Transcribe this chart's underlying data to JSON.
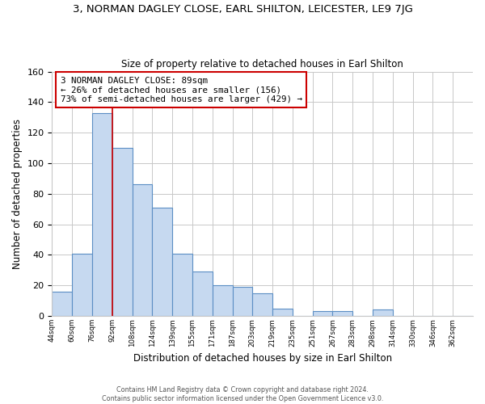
{
  "title": "3, NORMAN DAGLEY CLOSE, EARL SHILTON, LEICESTER, LE9 7JG",
  "subtitle": "Size of property relative to detached houses in Earl Shilton",
  "xlabel": "Distribution of detached houses by size in Earl Shilton",
  "ylabel": "Number of detached properties",
  "bin_labels": [
    "44sqm",
    "60sqm",
    "76sqm",
    "92sqm",
    "108sqm",
    "124sqm",
    "139sqm",
    "155sqm",
    "171sqm",
    "187sqm",
    "203sqm",
    "219sqm",
    "235sqm",
    "251sqm",
    "267sqm",
    "283sqm",
    "298sqm",
    "314sqm",
    "330sqm",
    "346sqm",
    "362sqm"
  ],
  "bar_heights": [
    16,
    41,
    133,
    110,
    86,
    71,
    41,
    29,
    20,
    19,
    15,
    5,
    0,
    3,
    3,
    0,
    4,
    0,
    0,
    0,
    0
  ],
  "bar_color": "#c6d9f0",
  "bar_edge_color": "#5b8ec4",
  "property_line_color": "#cc0000",
  "annotation_text": "3 NORMAN DAGLEY CLOSE: 89sqm\n← 26% of detached houses are smaller (156)\n73% of semi-detached houses are larger (429) →",
  "annotation_box_color": "#ffffff",
  "annotation_box_edge_color": "#cc0000",
  "ylim": [
    0,
    160
  ],
  "yticks": [
    0,
    20,
    40,
    60,
    80,
    100,
    120,
    140,
    160
  ],
  "footer_line1": "Contains HM Land Registry data © Crown copyright and database right 2024.",
  "footer_line2": "Contains public sector information licensed under the Open Government Licence v3.0.",
  "bg_color": "#ffffff",
  "grid_color": "#c8c8c8"
}
